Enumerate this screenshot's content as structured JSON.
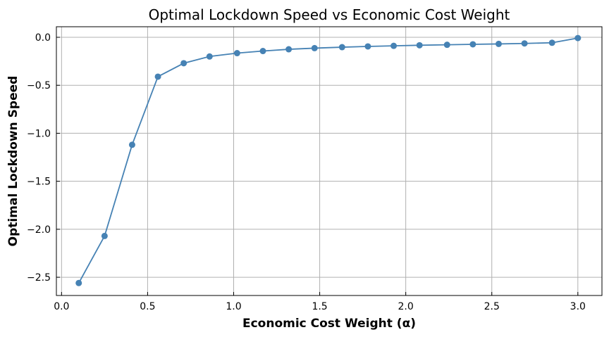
{
  "chart_data": {
    "type": "line",
    "title": "Optimal Lockdown Speed vs Economic Cost Weight",
    "xlabel": "Economic Cost Weight (α)",
    "ylabel": "Optimal Lockdown Speed",
    "xlim": [
      -0.03,
      3.14
    ],
    "ylim": [
      -2.69,
      0.11
    ],
    "xticks": [
      0.0,
      0.5,
      1.0,
      1.5,
      2.0,
      2.5,
      3.0
    ],
    "xtick_labels": [
      "0.0",
      "0.5",
      "1.0",
      "1.5",
      "2.0",
      "2.5",
      "3.0"
    ],
    "yticks": [
      0.0,
      -0.5,
      -1.0,
      -1.5,
      -2.0,
      -2.5
    ],
    "ytick_labels": [
      "0.0",
      "−0.5",
      "−1.0",
      "−1.5",
      "−2.0",
      "−2.5"
    ],
    "grid": true,
    "color": "#4682b4",
    "series": [
      {
        "x": [
          0.1,
          0.25,
          0.41,
          0.56,
          0.71,
          0.86,
          1.02,
          1.17,
          1.32,
          1.47,
          1.63,
          1.78,
          1.93,
          2.08,
          2.24,
          2.39,
          2.54,
          2.69,
          2.85,
          3.0
        ],
        "y": [
          -2.56,
          -2.07,
          -1.12,
          -0.41,
          -0.27,
          -0.2,
          -0.165,
          -0.143,
          -0.125,
          -0.113,
          -0.103,
          -0.095,
          -0.089,
          -0.083,
          -0.078,
          -0.073,
          -0.069,
          -0.064,
          -0.057,
          -0.008
        ]
      }
    ]
  }
}
